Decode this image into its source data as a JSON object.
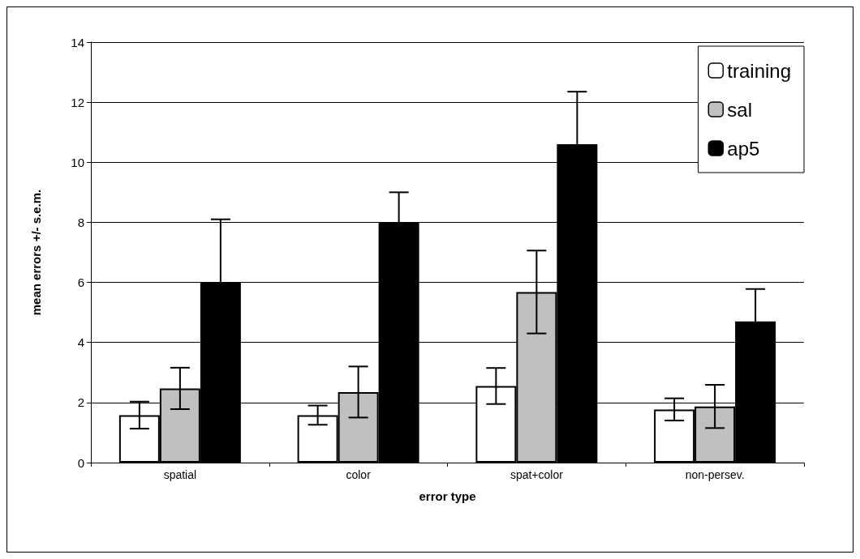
{
  "chart_data": {
    "type": "bar",
    "xlabel": "error type",
    "ylabel": "mean errors +/- s.e.m.",
    "categories": [
      "spatial",
      "color",
      "spat+color",
      "non-persev."
    ],
    "series": [
      {
        "name": "training",
        "color": "#ffffff",
        "values": [
          1.58,
          1.58,
          2.55,
          1.77
        ],
        "errors": [
          0.45,
          0.32,
          0.6,
          0.37
        ]
      },
      {
        "name": "sal",
        "color": "#c0c0c0",
        "values": [
          2.47,
          2.35,
          5.68,
          1.87
        ],
        "errors": [
          0.69,
          0.85,
          1.38,
          0.72
        ]
      },
      {
        "name": "ap5",
        "color": "#000000",
        "values": [
          6.0,
          8.0,
          10.6,
          4.7
        ],
        "errors": [
          2.1,
          1.0,
          1.75,
          1.08
        ]
      }
    ],
    "ylim": [
      0,
      14
    ],
    "yticks": [
      0,
      2,
      4,
      6,
      8,
      10,
      12,
      14
    ],
    "grid": "y",
    "legend": "top right"
  }
}
